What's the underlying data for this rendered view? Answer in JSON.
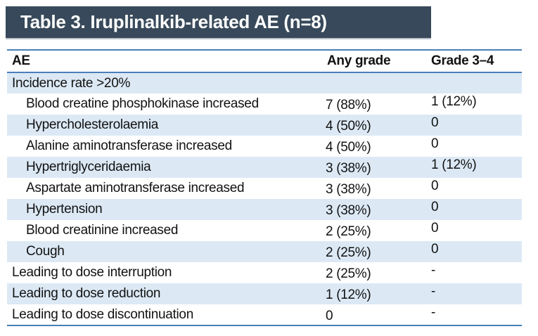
{
  "title": "Table 3. Iruplinalkib-related AE (n=8)",
  "table": {
    "columns": [
      "AE",
      "Any grade",
      "Grade 3–4"
    ],
    "rows": [
      {
        "label": "Incidence rate >20%",
        "indent": 0,
        "any_grade": "",
        "grade34": ""
      },
      {
        "label": "Blood creatine phosphokinase increased",
        "indent": 1,
        "any_grade": "7 (88%)",
        "grade34": "1 (12%)"
      },
      {
        "label": "Hypercholesterolaemia",
        "indent": 1,
        "any_grade": "4 (50%)",
        "grade34": "0"
      },
      {
        "label": "Alanine aminotransferase increased",
        "indent": 1,
        "any_grade": "4 (50%)",
        "grade34": "0"
      },
      {
        "label": "Hypertriglyceridaemia",
        "indent": 1,
        "any_grade": "3 (38%)",
        "grade34": "1 (12%)"
      },
      {
        "label": "Aspartate aminotransferase increased",
        "indent": 1,
        "any_grade": "3 (38%)",
        "grade34": "0"
      },
      {
        "label": "Hypertension",
        "indent": 1,
        "any_grade": "3 (38%)",
        "grade34": "0"
      },
      {
        "label": "Blood creatinine increased",
        "indent": 1,
        "any_grade": "2 (25%)",
        "grade34": "0"
      },
      {
        "label": "Cough",
        "indent": 1,
        "any_grade": "2 (25%)",
        "grade34": "0"
      },
      {
        "label": "Leading to dose interruption",
        "indent": 0,
        "any_grade": "2 (25%)",
        "grade34": "-"
      },
      {
        "label": "Leading to dose reduction",
        "indent": 0,
        "any_grade": "1 (12%)",
        "grade34": "-"
      },
      {
        "label": "Leading to dose discontinuation",
        "indent": 0,
        "any_grade": "0",
        "grade34": "-"
      }
    ]
  },
  "colors": {
    "title_bar_bg": "#37495a",
    "title_text": "#ffffff",
    "rule_blue": "#4a7ebb",
    "row_shade": "#dce9f5",
    "body_text": "#121212"
  }
}
